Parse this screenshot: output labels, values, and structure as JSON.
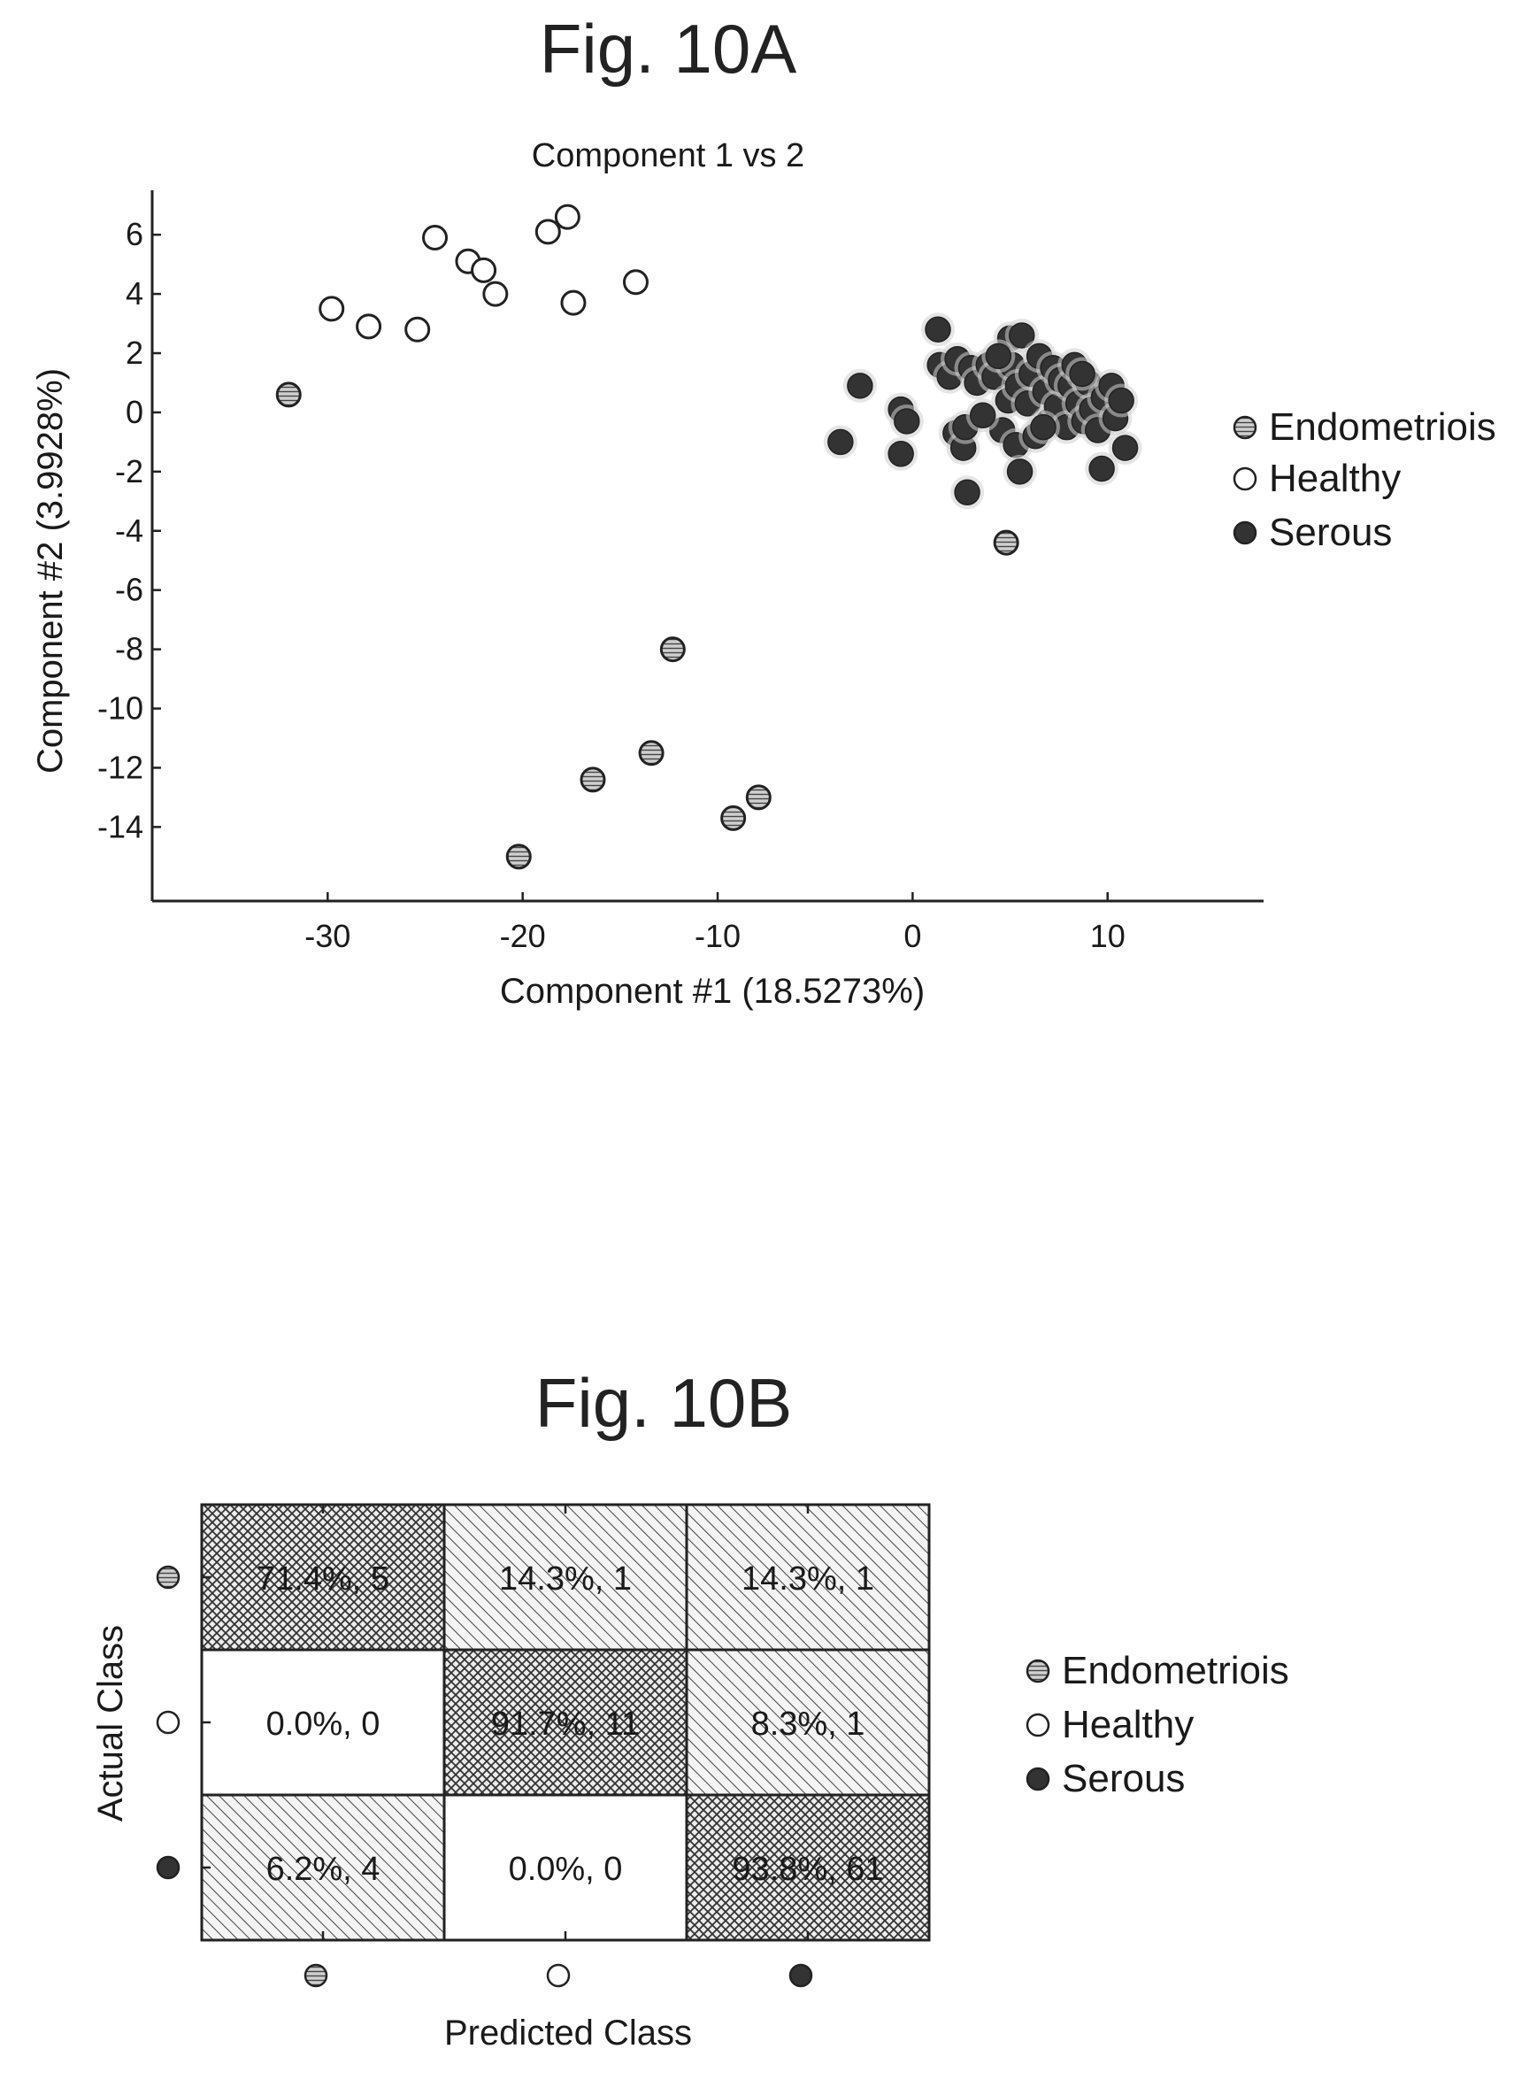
{
  "figure_a_title": "Fig. 10A",
  "figure_b_title": "Fig. 10B",
  "colors": {
    "endometriosis": "#a9a9a9",
    "healthy": "#ffffff",
    "serous": "#333333",
    "stroke": "#222222"
  },
  "chart_data": [
    {
      "type": "scatter",
      "title": "Component 1 vs 2",
      "xlabel": "Component #1 (18.5273%)",
      "ylabel": "Component #2 (3.9928%)",
      "xlim": [
        -39,
        18
      ],
      "ylim": [
        -16.5,
        7.5
      ],
      "xticks": [
        -30,
        -20,
        -10,
        0,
        10
      ],
      "yticks": [
        6,
        4,
        2,
        0,
        -2,
        -4,
        -6,
        -8,
        -10,
        -12,
        -14
      ],
      "legend_position": "right",
      "series": [
        {
          "name": "Endometriois",
          "style": "hatched",
          "points": [
            [
              -32,
              0.6
            ],
            [
              4.8,
              -4.4
            ],
            [
              -12.3,
              -8.0
            ],
            [
              -13.4,
              -11.5
            ],
            [
              -16.4,
              -12.4
            ],
            [
              -9.2,
              -13.7
            ],
            [
              -7.9,
              -13.0
            ],
            [
              -20.2,
              -15.0
            ]
          ]
        },
        {
          "name": "Healthy",
          "style": "open",
          "points": [
            [
              -29.8,
              3.5
            ],
            [
              -27.9,
              2.9
            ],
            [
              -25.4,
              2.8
            ],
            [
              -24.5,
              5.9
            ],
            [
              -22.8,
              5.1
            ],
            [
              -22.0,
              4.8
            ],
            [
              -21.4,
              4.0
            ],
            [
              -18.7,
              6.1
            ],
            [
              -17.7,
              6.6
            ],
            [
              -17.4,
              3.7
            ],
            [
              -14.2,
              4.4
            ]
          ]
        },
        {
          "name": "Serous",
          "style": "filled",
          "points": [
            [
              -3.7,
              -1.0
            ],
            [
              -2.7,
              0.9
            ],
            [
              -0.6,
              0.1
            ],
            [
              -0.3,
              -0.3
            ],
            [
              -0.6,
              -1.4
            ],
            [
              1.3,
              2.8
            ],
            [
              1.4,
              1.6
            ],
            [
              1.9,
              1.2
            ],
            [
              2.3,
              1.8
            ],
            [
              2.2,
              -0.7
            ],
            [
              2.6,
              -1.2
            ],
            [
              2.7,
              -0.5
            ],
            [
              2.8,
              -2.7
            ],
            [
              3.0,
              1.5
            ],
            [
              3.3,
              1.0
            ],
            [
              3.9,
              1.6
            ],
            [
              4.2,
              1.2
            ],
            [
              4.6,
              -0.6
            ],
            [
              4.9,
              0.4
            ],
            [
              5.0,
              2.5
            ],
            [
              5.1,
              1.6
            ],
            [
              5.3,
              -1.1
            ],
            [
              5.4,
              0.9
            ],
            [
              5.5,
              -2.0
            ],
            [
              5.6,
              2.6
            ],
            [
              5.9,
              0.3
            ],
            [
              6.1,
              1.3
            ],
            [
              6.3,
              -0.8
            ],
            [
              6.5,
              1.9
            ],
            [
              6.8,
              0.7
            ],
            [
              7.0,
              -0.3
            ],
            [
              7.2,
              1.5
            ],
            [
              7.4,
              0.2
            ],
            [
              7.6,
              1.1
            ],
            [
              7.9,
              -0.5
            ],
            [
              8.1,
              0.9
            ],
            [
              8.3,
              1.6
            ],
            [
              8.5,
              0.3
            ],
            [
              8.8,
              -0.3
            ],
            [
              9.0,
              1.0
            ],
            [
              9.2,
              0.1
            ],
            [
              9.5,
              -0.6
            ],
            [
              9.7,
              -1.9
            ],
            [
              9.8,
              0.5
            ],
            [
              10.2,
              0.9
            ],
            [
              10.4,
              -0.2
            ],
            [
              10.7,
              0.4
            ],
            [
              10.9,
              -1.2
            ],
            [
              3.6,
              -0.1
            ],
            [
              6.7,
              -0.5
            ],
            [
              4.4,
              1.9
            ],
            [
              8.7,
              1.3
            ]
          ]
        }
      ]
    },
    {
      "type": "heatmap",
      "title": "",
      "xlabel": "Predicted Class",
      "ylabel": "Actual Class",
      "classes": [
        "Endometriois",
        "Healthy",
        "Serous"
      ],
      "legend_position": "right",
      "cells": [
        [
          {
            "label": "71.4%, 5",
            "percent": 71.4,
            "count": 5
          },
          {
            "label": "14.3%, 1",
            "percent": 14.3,
            "count": 1
          },
          {
            "label": "14.3%, 1",
            "percent": 14.3,
            "count": 1
          }
        ],
        [
          {
            "label": "0.0%, 0",
            "percent": 0.0,
            "count": 0
          },
          {
            "label": "91.7%, 11",
            "percent": 91.7,
            "count": 11
          },
          {
            "label": "8.3%, 1",
            "percent": 8.3,
            "count": 1
          }
        ],
        [
          {
            "label": "6.2%, 4",
            "percent": 6.2,
            "count": 4
          },
          {
            "label": "0.0%, 0",
            "percent": 0.0,
            "count": 0
          },
          {
            "label": "93.8%, 61",
            "percent": 93.8,
            "count": 61
          }
        ]
      ]
    }
  ]
}
